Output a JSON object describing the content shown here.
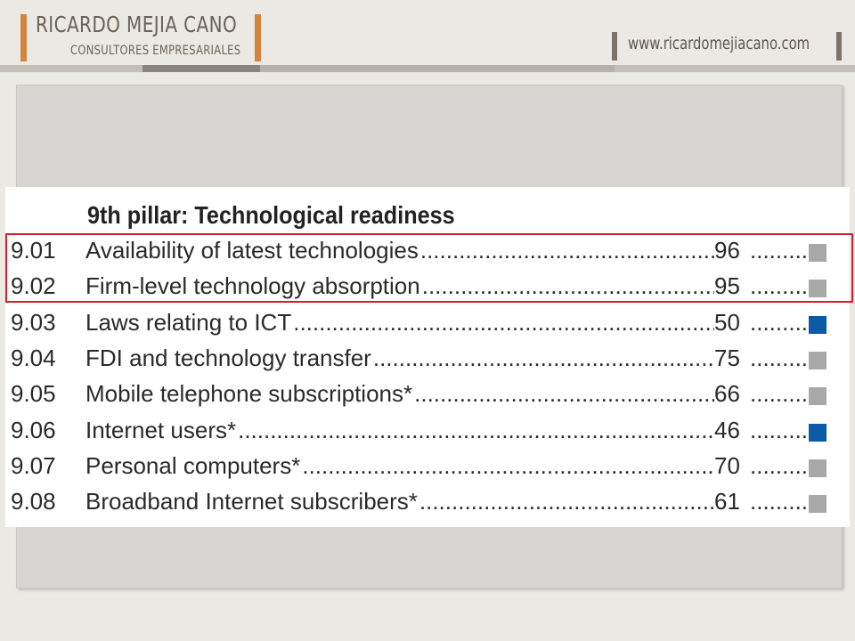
{
  "header": {
    "brand_name": "RICARDO MEJIA CANO",
    "brand_tagline": "CONSULTORES EMPRESARIALES",
    "website": "www.ricardomejiacano.com",
    "accent_color": "#d4843e"
  },
  "table": {
    "title": "9th pillar: Technological readiness",
    "dots": "...................................................................................................................",
    "dots_short": "...........",
    "rows": [
      {
        "num": "9.01",
        "label": "Availability of latest technologies",
        "value": "96",
        "marker": "gray"
      },
      {
        "num": "9.02",
        "label": "Firm-level technology absorption",
        "value": "95",
        "marker": "gray"
      },
      {
        "num": "9.03",
        "label": "Laws relating to ICT",
        "value": "50",
        "marker": "blue"
      },
      {
        "num": "9.04",
        "label": "FDI and technology transfer",
        "value": "75",
        "marker": "gray"
      },
      {
        "num": "9.05",
        "label": "Mobile telephone subscriptions*",
        "value": "66",
        "marker": "gray"
      },
      {
        "num": "9.06",
        "label": "Internet users*",
        "value": "46",
        "marker": "blue"
      },
      {
        "num": "9.07",
        "label": "Personal computers*",
        "value": "70",
        "marker": "gray"
      },
      {
        "num": "9.08",
        "label": "Broadband Internet subscribers*",
        "value": "61",
        "marker": "gray"
      }
    ],
    "marker_colors": {
      "gray": "#a8a8a8",
      "blue": "#0b5aa6"
    },
    "highlight_color": "#d2202b"
  }
}
